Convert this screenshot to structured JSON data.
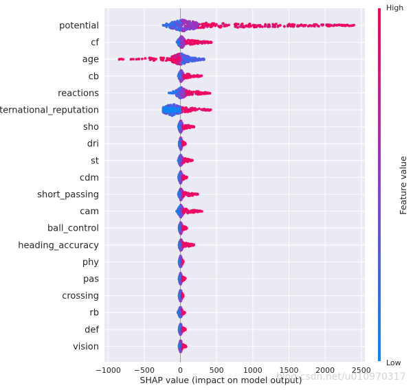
{
  "chart_data": {
    "type": "scatter",
    "subtype": "shap-beeswarm-summary",
    "title": "",
    "xlabel": "SHAP value (impact on model output)",
    "ylabel": "",
    "xlim": [
      -1050,
      2550
    ],
    "xticks": [
      -1000,
      -500,
      0,
      500,
      1000,
      1500,
      2000,
      2500
    ],
    "xtick_labels": [
      "−1000",
      "−500",
      "0",
      "500",
      "1000",
      "1500",
      "2000",
      "2500"
    ],
    "grid": true,
    "colorbar": {
      "label": "Feature value",
      "high_label": "High",
      "low_label": "Low",
      "low_color": "#008bfb",
      "mid_color": "#8a3dd0",
      "high_color": "#ff0052"
    },
    "features": [
      {
        "name": "potential",
        "min": -250,
        "max": 2400,
        "core_lo": -150,
        "core_hi": 250,
        "low_side": "left"
      },
      {
        "name": "cf",
        "min": -50,
        "max": 430,
        "core_lo": -30,
        "core_hi": 60,
        "low_side": "left"
      },
      {
        "name": "age",
        "min": -900,
        "max": 330,
        "core_lo": -120,
        "core_hi": 120,
        "low_side": "right"
      },
      {
        "name": "cb",
        "min": -30,
        "max": 300,
        "core_lo": -20,
        "core_hi": 40,
        "low_side": "left"
      },
      {
        "name": "reactions",
        "min": -160,
        "max": 410,
        "core_lo": -60,
        "core_hi": 80,
        "low_side": "left"
      },
      {
        "name": "international_reputation",
        "min": -240,
        "max": 430,
        "core_lo": -240,
        "core_hi": 20,
        "low_side": "left"
      },
      {
        "name": "sho",
        "min": -30,
        "max": 190,
        "core_lo": -20,
        "core_hi": 30,
        "low_side": "left"
      },
      {
        "name": "dri",
        "min": -20,
        "max": 70,
        "core_lo": -15,
        "core_hi": 25,
        "low_side": "left"
      },
      {
        "name": "st",
        "min": -30,
        "max": 170,
        "core_lo": -20,
        "core_hi": 30,
        "low_side": "left"
      },
      {
        "name": "cdm",
        "min": -30,
        "max": 90,
        "core_lo": -20,
        "core_hi": 25,
        "low_side": "left"
      },
      {
        "name": "short_passing",
        "min": -30,
        "max": 240,
        "core_lo": -20,
        "core_hi": 35,
        "low_side": "left"
      },
      {
        "name": "cam",
        "min": -60,
        "max": 300,
        "core_lo": -30,
        "core_hi": 40,
        "low_side": "left"
      },
      {
        "name": "ball_control",
        "min": -20,
        "max": 90,
        "core_lo": -15,
        "core_hi": 25,
        "low_side": "left"
      },
      {
        "name": "heading_accuracy",
        "min": -20,
        "max": 190,
        "core_lo": -15,
        "core_hi": 30,
        "low_side": "left"
      },
      {
        "name": "phy",
        "min": -20,
        "max": 40,
        "core_lo": -15,
        "core_hi": 20,
        "low_side": "left"
      },
      {
        "name": "pas",
        "min": -20,
        "max": 70,
        "core_lo": -15,
        "core_hi": 20,
        "low_side": "left"
      },
      {
        "name": "crossing",
        "min": -20,
        "max": 40,
        "core_lo": -15,
        "core_hi": 20,
        "low_side": "left"
      },
      {
        "name": "rb",
        "min": -40,
        "max": 60,
        "core_lo": -20,
        "core_hi": 20,
        "low_side": "left"
      },
      {
        "name": "def",
        "min": -20,
        "max": 70,
        "core_lo": -15,
        "core_hi": 20,
        "low_side": "left"
      },
      {
        "name": "vision",
        "min": -20,
        "max": 80,
        "core_lo": -15,
        "core_hi": 20,
        "low_side": "left"
      }
    ]
  },
  "watermark": "blog.csdn.net/u010970317"
}
